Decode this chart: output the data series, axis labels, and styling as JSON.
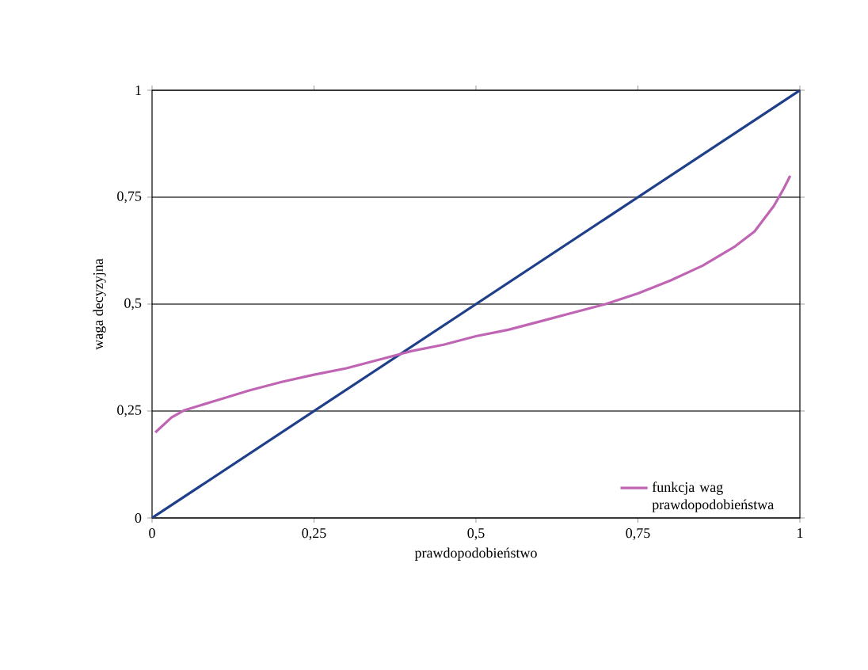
{
  "chart_data": {
    "type": "line",
    "xlabel": "prawdopodobieństwo",
    "ylabel": "waga decyzyjna",
    "xlim": [
      0,
      1
    ],
    "ylim": [
      0,
      1
    ],
    "xticks": [
      0,
      {
        "value": 0.25,
        "label": "0,25"
      },
      {
        "value": 0.5,
        "label": "0,5"
      },
      {
        "value": 0.75,
        "label": "0,75"
      },
      1
    ],
    "yticks": [
      0,
      {
        "value": 0.25,
        "label": "0,25"
      },
      {
        "value": 0.5,
        "label": "0,5"
      },
      {
        "value": 0.75,
        "label": "0,75"
      },
      1
    ],
    "grid": "y",
    "legend": "bottom right",
    "marker": "none",
    "line_style": "solid",
    "series": [
      {
        "color": "#1f3f8a",
        "x": [
          0,
          1
        ],
        "values": [
          0,
          1
        ]
      },
      {
        "name": "funkcja wag prawdopodobieństwa",
        "color": "#c064b4",
        "x": [
          0.005,
          0.03,
          0.05,
          0.1,
          0.15,
          0.2,
          0.25,
          0.3,
          0.35,
          0.4,
          0.45,
          0.5,
          0.55,
          0.6,
          0.65,
          0.7,
          0.75,
          0.8,
          0.85,
          0.9,
          0.93,
          0.96,
          0.975,
          0.985
        ],
        "values": [
          0.2,
          0.235,
          0.252,
          0.275,
          0.298,
          0.318,
          0.335,
          0.35,
          0.37,
          0.39,
          0.405,
          0.425,
          0.44,
          0.46,
          0.48,
          0.5,
          0.525,
          0.555,
          0.59,
          0.635,
          0.67,
          0.73,
          0.77,
          0.8
        ]
      }
    ]
  }
}
